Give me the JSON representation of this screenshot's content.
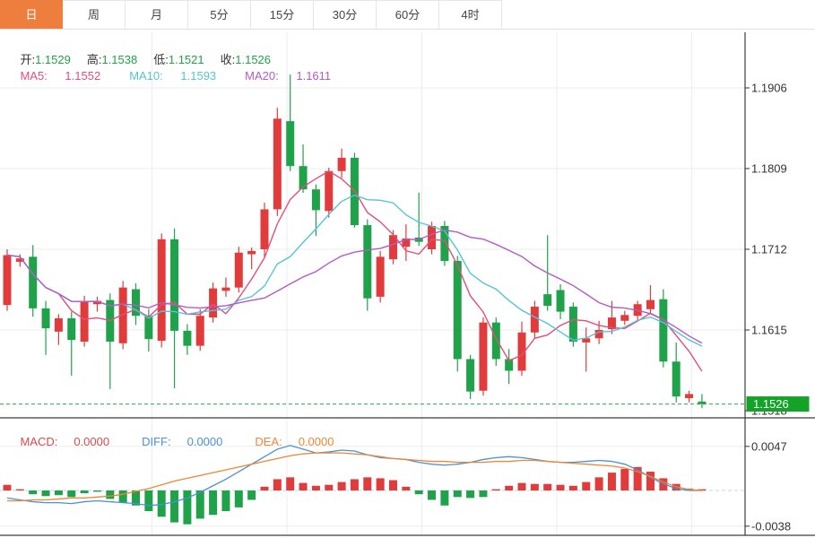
{
  "tabs": {
    "items": [
      {
        "label": "日",
        "active": true
      },
      {
        "label": "周",
        "active": false
      },
      {
        "label": "月",
        "active": false
      },
      {
        "label": "5分",
        "active": false
      },
      {
        "label": "15分",
        "active": false
      },
      {
        "label": "30分",
        "active": false
      },
      {
        "label": "60分",
        "active": false
      },
      {
        "label": "4时",
        "active": false
      }
    ]
  },
  "quote": {
    "open_label": "开:",
    "open": "1.1529",
    "high_label": "高:",
    "high": "1.1538",
    "low_label": "低:",
    "low": "1.1521",
    "close_label": "收:",
    "close": "1.1526"
  },
  "ma_legend": {
    "ma5_label": "MA5:",
    "ma5": "1.1552",
    "ma10_label": "MA10:",
    "ma10": "1.1593",
    "ma20_label": "MA20:",
    "ma20": "1.1611"
  },
  "macd_legend": {
    "macd_label": "MACD:",
    "macd": "0.0000",
    "diff_label": "DIFF:",
    "diff": "0.0000",
    "dea_label": "DEA:",
    "dea": "0.0000"
  },
  "axis": {
    "price_ticks": [
      {
        "label": "1.1906",
        "value": 1.1906
      },
      {
        "label": "1.1809",
        "value": 1.1809
      },
      {
        "label": "1.1712",
        "value": 1.1712
      },
      {
        "label": "1.1615",
        "value": 1.1615
      },
      {
        "label": "1.1518",
        "value": 1.1518
      }
    ],
    "price_badge": {
      "label": "1.1526",
      "value": 1.1526
    },
    "macd_ticks": [
      {
        "label": "0.0047",
        "value": 0.0047
      },
      {
        "label": "-0.0038",
        "value": -0.0038
      }
    ]
  },
  "colors": {
    "up": "#e23b3c",
    "down": "#1fa24a",
    "ma5": "#e34d7c",
    "ma10": "#55c3d8",
    "ma20": "#b25bc4",
    "quote_value": "#1fa24a",
    "quote_label": "#333333",
    "macd_text": "#d84b4b",
    "diff_text": "#4a90d9",
    "dea_text": "#ee8633",
    "tab_active": "#ee7e3e",
    "badge": "#15a229",
    "price_line": "#2aa84a",
    "grid": "#ededed",
    "vgrid": "#e8eef2",
    "frame": "#3c3c3c",
    "axis_text": "#333333",
    "macd_zero": "#bcd9ea"
  },
  "chart_data": {
    "type": "candlestick",
    "description": "Daily EUR/USD style candlestick chart (red=up, green=down) with MA5/MA10/MA20 overlays and MACD sub-panel",
    "ylim": [
      1.1516,
      1.1969
    ],
    "price_line": 1.1526,
    "ma_periods": [
      5,
      10,
      20
    ],
    "candles_ohlc": [
      [
        1.1645,
        1.1712,
        1.1638,
        1.1705
      ],
      [
        1.1697,
        1.1706,
        1.1691,
        1.1701
      ],
      [
        1.1703,
        1.1717,
        1.1631,
        1.1641
      ],
      [
        1.1641,
        1.165,
        1.1585,
        1.1617
      ],
      [
        1.1613,
        1.1634,
        1.1597,
        1.1629
      ],
      [
        1.1629,
        1.1637,
        1.156,
        1.1603
      ],
      [
        1.1601,
        1.1656,
        1.1595,
        1.1649
      ],
      [
        1.1646,
        1.1655,
        1.1637,
        1.165
      ],
      [
        1.1651,
        1.1659,
        1.1544,
        1.1601
      ],
      [
        1.1599,
        1.1674,
        1.1592,
        1.1666
      ],
      [
        1.1664,
        1.1671,
        1.1621,
        1.1632
      ],
      [
        1.1632,
        1.164,
        1.1589,
        1.1604
      ],
      [
        1.1602,
        1.1731,
        1.1594,
        1.1724
      ],
      [
        1.1724,
        1.1737,
        1.1545,
        1.1614
      ],
      [
        1.1614,
        1.1622,
        1.1585,
        1.1596
      ],
      [
        1.1596,
        1.164,
        1.159,
        1.1632
      ],
      [
        1.163,
        1.1672,
        1.1624,
        1.1665
      ],
      [
        1.1662,
        1.1678,
        1.1655,
        1.1666
      ],
      [
        1.1666,
        1.1715,
        1.166,
        1.1708
      ],
      [
        1.1706,
        1.1714,
        1.1688,
        1.171
      ],
      [
        1.1712,
        1.1768,
        1.1702,
        1.176
      ],
      [
        1.176,
        1.1882,
        1.1752,
        1.1869
      ],
      [
        1.1866,
        1.1922,
        1.1806,
        1.1812
      ],
      [
        1.1812,
        1.1838,
        1.178,
        1.1784
      ],
      [
        1.1784,
        1.179,
        1.1728,
        1.1759
      ],
      [
        1.1758,
        1.181,
        1.175,
        1.1806
      ],
      [
        1.1806,
        1.1833,
        1.1798,
        1.1822
      ],
      [
        1.1822,
        1.1828,
        1.1738,
        1.1741
      ],
      [
        1.1741,
        1.1748,
        1.1638,
        1.1653
      ],
      [
        1.1655,
        1.171,
        1.1648,
        1.1703
      ],
      [
        1.17,
        1.1735,
        1.1694,
        1.1729
      ],
      [
        1.1715,
        1.1742,
        1.1698,
        1.1725
      ],
      [
        1.1726,
        1.178,
        1.1716,
        1.1721
      ],
      [
        1.1712,
        1.1745,
        1.1706,
        1.174
      ],
      [
        1.174,
        1.1746,
        1.1692,
        1.1698
      ],
      [
        1.1698,
        1.1704,
        1.1565,
        1.158
      ],
      [
        1.158,
        1.1585,
        1.1532,
        1.1541
      ],
      [
        1.1542,
        1.163,
        1.1536,
        1.1624
      ],
      [
        1.1624,
        1.163,
        1.1572,
        1.158
      ],
      [
        1.158,
        1.1592,
        1.155,
        1.1566
      ],
      [
        1.1566,
        1.1625,
        1.156,
        1.1612
      ],
      [
        1.1612,
        1.165,
        1.1605,
        1.1643
      ],
      [
        1.1658,
        1.1729,
        1.1638,
        1.1644
      ],
      [
        1.1663,
        1.167,
        1.1628,
        1.1637
      ],
      [
        1.1643,
        1.1648,
        1.1595,
        1.1601
      ],
      [
        1.16,
        1.1618,
        1.1565,
        1.1605
      ],
      [
        1.1605,
        1.1626,
        1.1598,
        1.1615
      ],
      [
        1.1616,
        1.165,
        1.161,
        1.163
      ],
      [
        1.1626,
        1.1638,
        1.1621,
        1.1633
      ],
      [
        1.1632,
        1.165,
        1.1626,
        1.1646
      ],
      [
        1.164,
        1.1669,
        1.1634,
        1.1651
      ],
      [
        1.1652,
        1.1664,
        1.157,
        1.1577
      ],
      [
        1.1577,
        1.16,
        1.1528,
        1.1535
      ],
      [
        1.1533,
        1.1542,
        1.1528,
        1.1538
      ],
      [
        1.1529,
        1.1538,
        1.1521,
        1.1526
      ]
    ],
    "macd": {
      "ylim": [
        -0.0048,
        0.0078
      ],
      "hist": [
        0.0006,
        0.0001,
        -0.0004,
        -0.0006,
        -0.0005,
        -0.0007,
        -0.0003,
        -0.0001,
        -0.0009,
        -0.0013,
        -0.0016,
        -0.0022,
        -0.0028,
        -0.0034,
        -0.0036,
        -0.003,
        -0.0026,
        -0.0022,
        -0.0018,
        -0.001,
        0.0004,
        0.0012,
        0.0014,
        0.0008,
        0.0005,
        0.0006,
        0.0009,
        0.0012,
        0.0014,
        0.0013,
        0.0011,
        0.0004,
        -0.0004,
        -0.001,
        -0.0016,
        -0.0007,
        -0.0008,
        -0.0007,
        0.0001,
        0.0005,
        0.0008,
        0.0007,
        0.0007,
        0.0006,
        0.0005,
        0.0009,
        0.0014,
        0.0019,
        0.0023,
        0.0025,
        0.002,
        0.0013,
        0.0007,
        0.0002,
        0.0
      ],
      "diff": [
        -0.0008,
        -0.001,
        -0.0012,
        -0.0013,
        -0.0013,
        -0.0014,
        -0.0012,
        -0.0011,
        -0.0012,
        -0.0013,
        -0.0014,
        -0.0016,
        -0.0015,
        -0.0012,
        -0.0008,
        -0.0002,
        0.0005,
        0.0012,
        0.002,
        0.0028,
        0.0036,
        0.0044,
        0.0048,
        0.0044,
        0.004,
        0.0041,
        0.0043,
        0.0042,
        0.0038,
        0.0035,
        0.0034,
        0.0033,
        0.003,
        0.0028,
        0.0027,
        0.0028,
        0.003,
        0.0033,
        0.0035,
        0.0036,
        0.0035,
        0.0033,
        0.0031,
        0.003,
        0.003,
        0.0031,
        0.0032,
        0.0031,
        0.0028,
        0.0022,
        0.0014,
        0.0007,
        0.0002,
        0.0,
        0.0
      ],
      "dea": [
        -0.0011,
        -0.0011,
        -0.001,
        -0.001,
        -0.0009,
        -0.0008,
        -0.0008,
        -0.0007,
        -0.0006,
        -0.0004,
        -0.0001,
        0.0002,
        0.0006,
        0.001,
        0.0013,
        0.0016,
        0.0019,
        0.0022,
        0.0025,
        0.0028,
        0.0031,
        0.0034,
        0.0037,
        0.0039,
        0.004,
        0.004,
        0.004,
        0.0039,
        0.0038,
        0.0036,
        0.0034,
        0.0033,
        0.0032,
        0.0031,
        0.0031,
        0.003,
        0.003,
        0.003,
        0.0031,
        0.0031,
        0.0032,
        0.0032,
        0.0031,
        0.003,
        0.0029,
        0.0028,
        0.0027,
        0.0026,
        0.0024,
        0.002,
        0.0015,
        0.0009,
        0.0004,
        0.0001,
        0.0
      ]
    }
  }
}
